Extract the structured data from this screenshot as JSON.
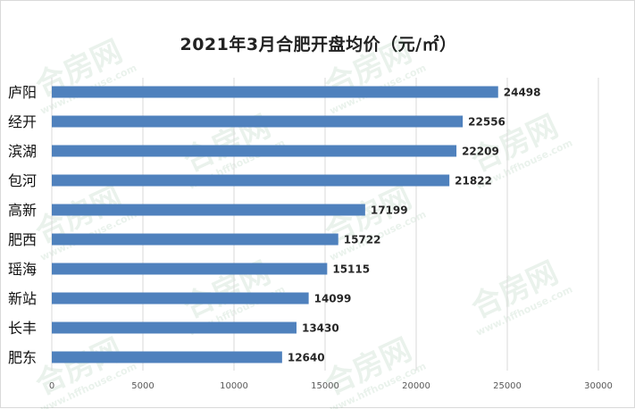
{
  "chart_data": {
    "type": "bar",
    "orientation": "horizontal",
    "title": "2021年3月合肥开盘均价（元/㎡）",
    "categories": [
      "庐阳",
      "经开",
      "滨湖",
      "包河",
      "高新",
      "肥西",
      "瑶海",
      "新站",
      "长丰",
      "肥东"
    ],
    "values": [
      24498,
      22556,
      22209,
      21822,
      17199,
      15722,
      15115,
      14099,
      13430,
      12640
    ],
    "data_labels": [
      "24498",
      "22556",
      "22209",
      "21822",
      "17199",
      "15722",
      "15115",
      "14099",
      "13430",
      "12640"
    ],
    "xlim": [
      0,
      30000
    ],
    "x_ticks": [
      0,
      5000,
      10000,
      15000,
      20000,
      25000,
      30000
    ],
    "x_tick_labels": [
      "0",
      "5000",
      "10000",
      "15000",
      "20000",
      "25000",
      "30000"
    ],
    "grid": true,
    "bar_color": "#4f81bd"
  },
  "watermark": {
    "logo_text": "合房网",
    "url_text": "www.hffhouse.com"
  }
}
